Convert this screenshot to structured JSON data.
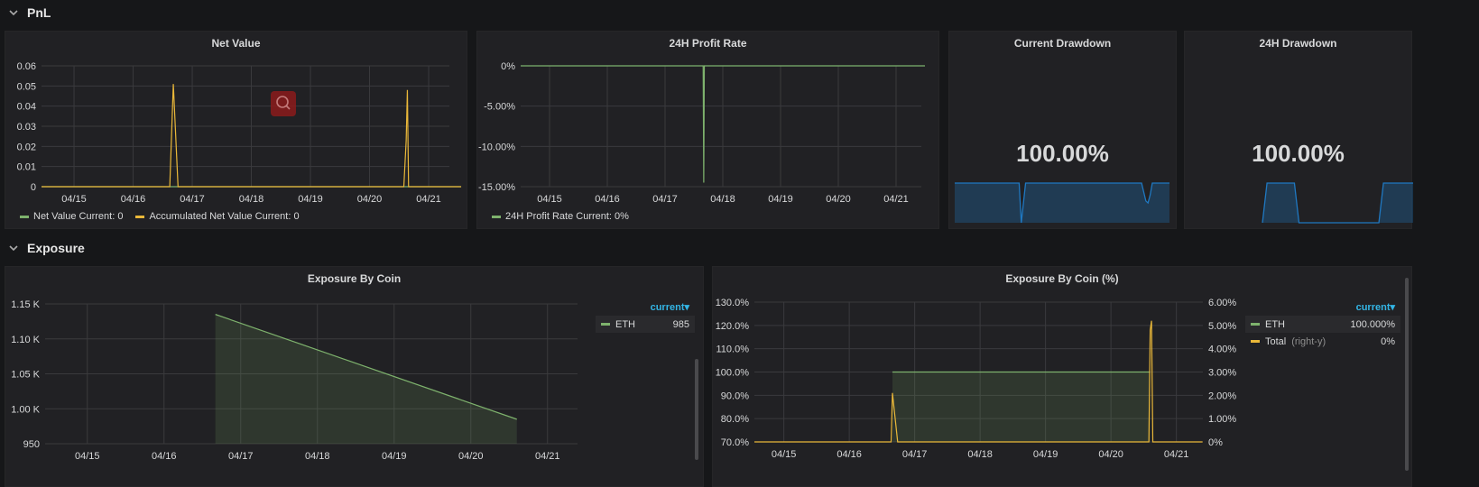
{
  "rows": {
    "pnl": {
      "title": "PnL"
    },
    "exposure": {
      "title": "Exposure"
    }
  },
  "colors": {
    "green": "#7eb26d",
    "yellow": "#eab839",
    "blue": "#1f78c1",
    "accent": "#33b5e5"
  },
  "net_value": {
    "title": "Net Value",
    "legend": [
      {
        "text": "Net Value  Current: 0",
        "color": "#7eb26d"
      },
      {
        "text": "Accumulated Net Value  Current: 0",
        "color": "#eab839"
      }
    ]
  },
  "profit_rate": {
    "title": "24H Profit Rate",
    "legend": [
      {
        "text": "24H Profit Rate  Current: 0%",
        "color": "#7eb26d"
      }
    ]
  },
  "current_drawdown": {
    "title": "Current Drawdown",
    "value": "100.00%"
  },
  "dd24h": {
    "title": "24H Drawdown",
    "value": "100.00%"
  },
  "exposure_by_coin": {
    "title": "Exposure By Coin",
    "table": {
      "header": "current▾",
      "rows": [
        {
          "name": "ETH",
          "value": "985",
          "color": "#7eb26d"
        }
      ]
    }
  },
  "exposure_pct": {
    "title": "Exposure By Coin (%)",
    "table": {
      "header": "current▾",
      "rows": [
        {
          "name": "ETH",
          "suffix": "",
          "value": "100.000%",
          "color": "#7eb26d"
        },
        {
          "name": "Total",
          "suffix": "(right-y)",
          "value": "0%",
          "color": "#eab839"
        }
      ]
    }
  },
  "chart_data": [
    {
      "type": "line",
      "title": "Net Value",
      "x_ticks": [
        "04/15",
        "04/16",
        "04/17",
        "04/18",
        "04/19",
        "04/20",
        "04/21"
      ],
      "y_ticks": [
        "0",
        "0.01",
        "0.02",
        "0.03",
        "0.04",
        "0.05",
        "0.06"
      ],
      "ylim": [
        0,
        0.06
      ],
      "xlim": [
        0,
        6.55
      ],
      "series": [
        {
          "name": "Net Value",
          "color": "#7eb26d",
          "points": [
            [
              -0.55,
              0
            ],
            [
              6.55,
              0
            ]
          ]
        },
        {
          "name": "Accumulated Net Value",
          "color": "#eab839",
          "points": [
            [
              -0.55,
              0
            ],
            [
              1.62,
              0
            ],
            [
              1.68,
              0.051
            ],
            [
              1.76,
              0
            ],
            [
              5.58,
              0
            ],
            [
              5.62,
              0.023
            ],
            [
              5.64,
              0.048
            ],
            [
              5.66,
              0
            ],
            [
              6.55,
              0
            ]
          ]
        }
      ]
    },
    {
      "type": "line",
      "title": "24H Profit Rate",
      "x_ticks": [
        "04/15",
        "04/16",
        "04/17",
        "04/18",
        "04/19",
        "04/20",
        "04/21"
      ],
      "y_ticks": [
        "0%",
        "-5.00%",
        "-10.00%",
        "-15.00%"
      ],
      "ylim": [
        -15,
        0
      ],
      "series": [
        {
          "name": "24H Profit Rate",
          "color": "#7eb26d",
          "points": [
            [
              -0.5,
              0
            ],
            [
              2.66,
              0
            ],
            [
              2.67,
              -14.5
            ],
            [
              2.68,
              0
            ],
            [
              6.5,
              0
            ]
          ]
        }
      ]
    },
    {
      "type": "area",
      "title": "Current Drawdown",
      "series": [
        {
          "name": "drawdown",
          "color": "#1f78c1",
          "points": [
            [
              0,
              1
            ],
            [
              0.3,
              1
            ],
            [
              0.31,
              0
            ],
            [
              0.33,
              1
            ],
            [
              0.87,
              1
            ],
            [
              0.89,
              0.55
            ],
            [
              0.9,
              0.5
            ],
            [
              0.91,
              0.7
            ],
            [
              0.92,
              1
            ],
            [
              1,
              1
            ]
          ]
        }
      ]
    },
    {
      "type": "area",
      "title": "24H Drawdown",
      "series": [
        {
          "name": "drawdown",
          "color": "#1f78c1",
          "points": [
            [
              0.34,
              0
            ],
            [
              0.36,
              1
            ],
            [
              0.48,
              1
            ],
            [
              0.5,
              0
            ],
            [
              0.85,
              0
            ],
            [
              0.87,
              1
            ],
            [
              1,
              1
            ]
          ]
        }
      ]
    },
    {
      "type": "area",
      "title": "Exposure By Coin",
      "x_ticks": [
        "04/15",
        "04/16",
        "04/17",
        "04/18",
        "04/19",
        "04/20",
        "04/21"
      ],
      "y_ticks": [
        "950",
        "1.00 K",
        "1.05 K",
        "1.10 K",
        "1.15 K"
      ],
      "ylim": [
        950,
        1150
      ],
      "series": [
        {
          "name": "ETH",
          "color": "#7eb26d",
          "points": [
            [
              1.67,
              1135
            ],
            [
              5.6,
              985
            ]
          ]
        }
      ]
    },
    {
      "type": "line",
      "title": "Exposure By Coin (%)",
      "x_ticks": [
        "04/15",
        "04/16",
        "04/17",
        "04/18",
        "04/19",
        "04/20",
        "04/21"
      ],
      "y_ticks": [
        "70.0%",
        "80.0%",
        "90.0%",
        "100.0%",
        "110.0%",
        "120.0%",
        "130.0%"
      ],
      "y2_ticks": [
        "0%",
        "1.00%",
        "2.00%",
        "3.00%",
        "4.00%",
        "5.00%",
        "6.00%"
      ],
      "ylim": [
        70,
        130
      ],
      "y2lim": [
        0,
        6
      ],
      "series": [
        {
          "name": "ETH",
          "axis": "left",
          "color": "#7eb26d",
          "points": [
            [
              1.66,
              100
            ],
            [
              5.6,
              100
            ]
          ]
        },
        {
          "name": "Total",
          "axis": "right",
          "color": "#eab839",
          "points": [
            [
              -0.45,
              0
            ],
            [
              1.64,
              0
            ],
            [
              1.66,
              2.1
            ],
            [
              1.74,
              0
            ],
            [
              5.58,
              0
            ],
            [
              5.6,
              4.8
            ],
            [
              5.62,
              5.2
            ],
            [
              5.64,
              0
            ],
            [
              6.4,
              0
            ]
          ]
        }
      ]
    }
  ]
}
